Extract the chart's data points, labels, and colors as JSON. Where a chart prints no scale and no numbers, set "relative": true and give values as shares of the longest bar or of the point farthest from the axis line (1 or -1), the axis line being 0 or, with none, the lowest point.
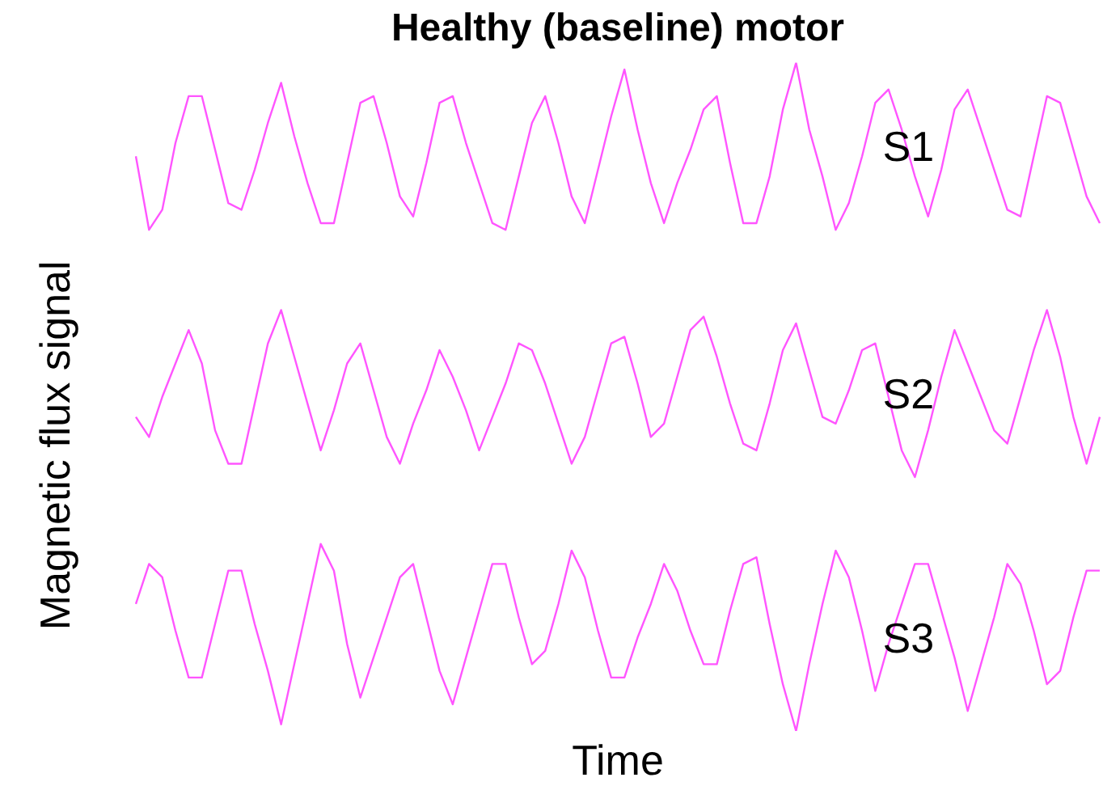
{
  "chart_data": {
    "type": "line",
    "title": "Healthy (baseline) motor",
    "xlabel": "Time",
    "ylabel": "Magnetic flux signal",
    "relative": true,
    "categories": [
      null,
      null,
      null,
      null,
      null,
      null,
      null,
      null,
      null,
      null,
      null,
      null,
      null,
      null,
      null,
      null,
      null,
      null,
      null,
      null,
      null,
      null,
      null,
      null,
      null,
      null,
      null,
      null,
      null,
      null,
      null,
      null,
      null,
      null,
      null,
      null,
      null,
      null,
      null,
      null,
      null,
      null,
      null,
      null,
      null,
      null,
      null,
      null,
      null,
      null,
      null,
      null,
      null,
      null,
      null,
      null,
      null,
      null,
      null,
      null,
      null,
      null,
      null,
      null,
      null,
      null,
      null,
      null,
      null,
      null,
      null,
      null,
      null,
      null
    ],
    "series": [
      {
        "name": "S1",
        "color": "#ff55ff",
        "values": [
          0.86,
          0.75,
          0.78,
          0.88,
          0.95,
          0.95,
          0.87,
          0.79,
          0.78,
          0.84,
          0.91,
          0.97,
          0.89,
          0.82,
          0.76,
          0.76,
          0.85,
          0.94,
          0.95,
          0.88,
          0.8,
          0.77,
          0.85,
          0.94,
          0.95,
          0.88,
          0.82,
          0.76,
          0.75,
          0.83,
          0.91,
          0.95,
          0.88,
          0.8,
          0.76,
          0.84,
          0.92,
          0.99,
          0.9,
          0.82,
          0.76,
          0.82,
          0.87,
          0.93,
          0.95,
          0.85,
          0.76,
          0.76,
          0.83,
          0.93,
          1.0,
          0.9,
          0.83,
          0.75,
          0.79,
          0.86,
          0.94,
          0.96,
          0.9,
          0.83,
          0.77,
          0.84,
          0.93,
          0.96,
          0.9,
          0.84,
          0.78,
          0.77,
          0.86,
          0.95,
          0.94,
          0.87,
          0.8,
          0.76
        ]
      },
      {
        "name": "S2",
        "color": "#ff55ff",
        "values": [
          0.47,
          0.44,
          0.5,
          0.55,
          0.6,
          0.55,
          0.45,
          0.4,
          0.4,
          0.49,
          0.58,
          0.63,
          0.56,
          0.49,
          0.42,
          0.48,
          0.55,
          0.58,
          0.51,
          0.44,
          0.4,
          0.46,
          0.51,
          0.57,
          0.53,
          0.48,
          0.42,
          0.47,
          0.52,
          0.58,
          0.57,
          0.52,
          0.46,
          0.4,
          0.44,
          0.51,
          0.58,
          0.59,
          0.52,
          0.44,
          0.46,
          0.53,
          0.6,
          0.62,
          0.56,
          0.49,
          0.43,
          0.42,
          0.49,
          0.57,
          0.61,
          0.54,
          0.47,
          0.46,
          0.51,
          0.57,
          0.58,
          0.5,
          0.42,
          0.38,
          0.45,
          0.53,
          0.6,
          0.55,
          0.5,
          0.45,
          0.43,
          0.5,
          0.57,
          0.63,
          0.56,
          0.47,
          0.4,
          0.47
        ]
      },
      {
        "name": "S3",
        "color": "#ff55ff",
        "values": [
          0.19,
          0.25,
          0.23,
          0.15,
          0.08,
          0.08,
          0.16,
          0.24,
          0.24,
          0.16,
          0.09,
          0.01,
          0.1,
          0.19,
          0.28,
          0.24,
          0.13,
          0.05,
          0.11,
          0.17,
          0.23,
          0.25,
          0.17,
          0.09,
          0.04,
          0.11,
          0.18,
          0.25,
          0.25,
          0.17,
          0.1,
          0.12,
          0.19,
          0.27,
          0.23,
          0.15,
          0.08,
          0.08,
          0.14,
          0.19,
          0.25,
          0.21,
          0.15,
          0.1,
          0.1,
          0.18,
          0.25,
          0.26,
          0.16,
          0.07,
          0.0,
          0.1,
          0.19,
          0.27,
          0.23,
          0.15,
          0.06,
          0.13,
          0.19,
          0.25,
          0.25,
          0.18,
          0.11,
          0.03,
          0.1,
          0.17,
          0.25,
          0.22,
          0.15,
          0.07,
          0.09,
          0.17,
          0.24,
          0.24
        ]
      }
    ]
  }
}
